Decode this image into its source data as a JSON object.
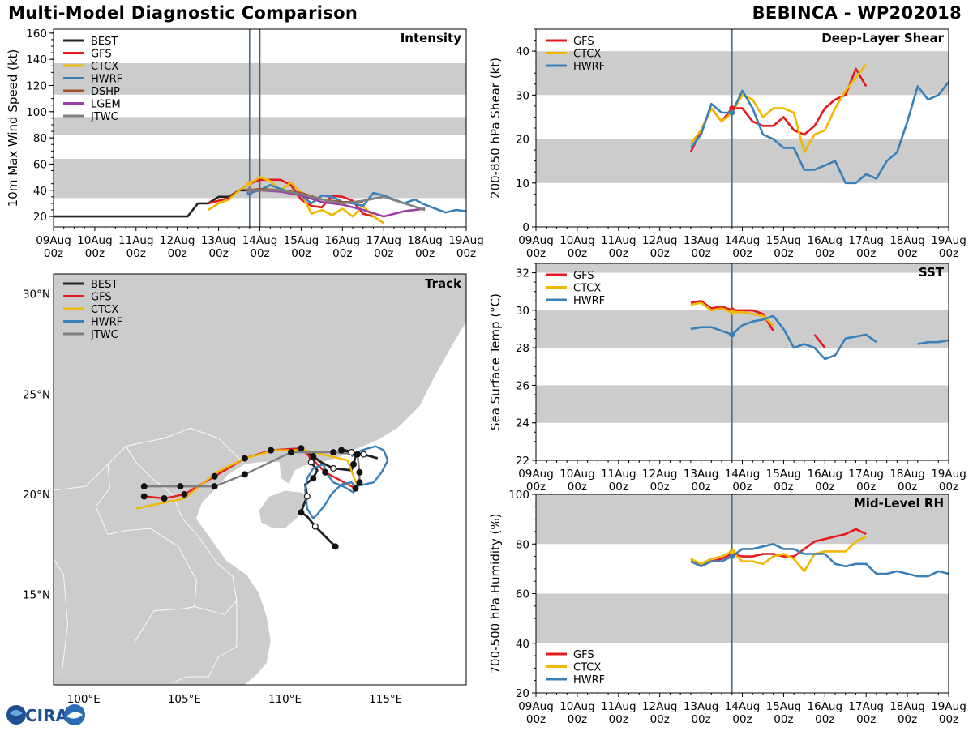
{
  "header": {
    "title": "Multi-Model Diagnostic Comparison",
    "storm": "BEBINCA - WP202018"
  },
  "logo": {
    "text": "CIRA"
  },
  "colors": {
    "BEST": "#222222",
    "GFS": "#e41a1c",
    "CTCX": "#f0b800",
    "HWRF": "#3a80b8",
    "DSHP": "#a0522d",
    "LGEM": "#9b3fa6",
    "JTWC": "#808080",
    "band": "#cccccc",
    "marker": "#4a6a8a"
  },
  "time_ticks": [
    {
      "l1": "09Aug",
      "l2": "00z"
    },
    {
      "l1": "10Aug",
      "l2": "00z"
    },
    {
      "l1": "11Aug",
      "l2": "00z"
    },
    {
      "l1": "12Aug",
      "l2": "00z"
    },
    {
      "l1": "13Aug",
      "l2": "00z"
    },
    {
      "l1": "14Aug",
      "l2": "00z"
    },
    {
      "l1": "15Aug",
      "l2": "00z"
    },
    {
      "l1": "16Aug",
      "l2": "00z"
    },
    {
      "l1": "17Aug",
      "l2": "00z"
    },
    {
      "l1": "18Aug",
      "l2": "00z"
    },
    {
      "l1": "19Aug",
      "l2": "00z"
    }
  ],
  "chart_data": [
    {
      "id": "intensity",
      "type": "line",
      "title": "Intensity",
      "ylabel": "10m Max Wind Speed (kt)",
      "xlim": [
        0,
        10
      ],
      "ylim": [
        12,
        163
      ],
      "yticks": [
        20,
        40,
        60,
        80,
        100,
        120,
        140,
        160
      ],
      "bands": [
        [
          34,
          64
        ],
        [
          82,
          96
        ],
        [
          113,
          137
        ]
      ],
      "markers": [
        {
          "x": 4.75,
          "color": "#4a6a8a"
        },
        {
          "x": 5.0,
          "color": "#7a4a3a"
        }
      ],
      "legend": [
        "BEST",
        "GFS",
        "CTCX",
        "HWRF",
        "DSHP",
        "LGEM",
        "JTWC"
      ],
      "series": [
        {
          "name": "BEST",
          "x": [
            0,
            3.25,
            3.5,
            3.75,
            4.0,
            4.25,
            4.5,
            4.75,
            5.0
          ],
          "y": [
            20,
            20,
            30,
            30,
            35,
            35,
            40,
            40,
            40
          ]
        },
        {
          "name": "GFS",
          "x": [
            3.75,
            4.25,
            4.5,
            4.75,
            5.0,
            5.25,
            5.5,
            5.75,
            6.0,
            6.25,
            6.5,
            6.75,
            7.0,
            7.25,
            7.5,
            7.75,
            8.0
          ],
          "y": [
            30,
            34,
            40,
            45,
            48,
            48,
            48,
            44,
            33,
            28,
            27,
            36,
            35,
            32,
            22,
            20,
            15
          ]
        },
        {
          "name": "CTCX",
          "x": [
            3.75,
            4.0,
            4.25,
            4.5,
            4.75,
            5.0,
            5.25,
            5.5,
            5.75,
            6.0,
            6.25,
            6.5,
            6.75,
            7.0,
            7.25,
            7.5,
            7.75,
            8.0
          ],
          "y": [
            25,
            30,
            33,
            40,
            45,
            50,
            47,
            40,
            46,
            38,
            22,
            25,
            21,
            26,
            20,
            28,
            20,
            15
          ]
        },
        {
          "name": "HWRF",
          "x": [
            4.75,
            5.0,
            5.25,
            5.5,
            5.75,
            6.0,
            6.25,
            6.5,
            6.75,
            7.0,
            7.25,
            7.5,
            7.75,
            8.0,
            8.25,
            8.5,
            8.75,
            9.0,
            9.25,
            9.5,
            9.75,
            10.0
          ],
          "y": [
            38,
            40,
            44,
            41,
            38,
            36,
            30,
            36,
            35,
            31,
            30,
            28,
            38,
            36,
            33,
            30,
            33,
            29,
            26,
            23,
            25,
            24
          ]
        },
        {
          "name": "DSHP",
          "x": [
            4.75,
            5.0,
            5.5,
            6.0,
            6.5,
            7.0,
            7.25,
            7.5
          ],
          "y": [
            40,
            41,
            40,
            38,
            33,
            31,
            31,
            31
          ]
        },
        {
          "name": "LGEM",
          "x": [
            4.75,
            5.0,
            5.5,
            6.0,
            6.5,
            7.0,
            7.5,
            8.0,
            8.5,
            9.0
          ],
          "y": [
            40,
            40,
            39,
            36,
            31,
            29,
            25,
            20,
            24,
            26
          ]
        },
        {
          "name": "JTWC",
          "x": [
            4.75,
            5.0,
            5.5,
            6.0,
            6.5,
            7.0,
            7.5,
            8.0,
            8.5,
            9.0
          ],
          "y": [
            40,
            40,
            40,
            37,
            33,
            30,
            32,
            35,
            30,
            25
          ]
        }
      ]
    },
    {
      "id": "shear",
      "type": "line",
      "title": "Deep-Layer Shear",
      "ylabel": "200-850 hPa Shear (kt)",
      "xlim": [
        0,
        10
      ],
      "ylim": [
        0,
        45
      ],
      "yticks": [
        0,
        10,
        20,
        30,
        40
      ],
      "bands": [
        [
          10,
          20
        ],
        [
          30,
          40
        ]
      ],
      "markers": [
        {
          "x": 4.75,
          "color": "#4a6a8a"
        }
      ],
      "legend": [
        "GFS",
        "CTCX",
        "HWRF"
      ],
      "series": [
        {
          "name": "GFS",
          "x": [
            3.75,
            4.0,
            4.25,
            4.5,
            4.75,
            5.0,
            5.25,
            5.5,
            5.75,
            6.0,
            6.25,
            6.5,
            6.75,
            7.0,
            7.25,
            7.5,
            7.75,
            8.0
          ],
          "y": [
            17,
            22,
            27,
            24,
            27,
            27,
            24,
            23,
            23,
            25,
            22,
            21,
            23,
            27,
            29,
            30,
            36,
            32
          ]
        },
        {
          "name": "CTCX",
          "x": [
            3.75,
            4.0,
            4.25,
            4.5,
            4.75,
            5.0,
            5.25,
            5.5,
            5.75,
            6.0,
            6.25,
            6.5,
            6.75,
            7.0,
            7.25,
            7.5,
            7.75,
            8.0
          ],
          "y": [
            19,
            22,
            27,
            24,
            26,
            30,
            29,
            25,
            27,
            27,
            26,
            17,
            21,
            22,
            27,
            31,
            34,
            37
          ]
        },
        {
          "name": "HWRF",
          "x": [
            3.75,
            4.0,
            4.25,
            4.5,
            4.75,
            5.0,
            5.25,
            5.5,
            5.75,
            6.0,
            6.25,
            6.5,
            6.75,
            7.0,
            7.25,
            7.5,
            7.75,
            8.0,
            8.25,
            8.5,
            8.75,
            9.0,
            9.25,
            9.5,
            9.75,
            10.0
          ],
          "y": [
            18,
            21,
            28,
            26,
            26,
            31,
            27,
            21,
            20,
            18,
            18,
            13,
            13,
            14,
            15,
            10,
            10,
            12,
            11,
            15,
            17,
            24,
            32,
            29,
            30,
            33
          ]
        }
      ]
    },
    {
      "id": "sst",
      "type": "line",
      "title": "SST",
      "ylabel": "Sea Surface Temp (°C)",
      "xlim": [
        0,
        10
      ],
      "ylim": [
        22,
        32.5
      ],
      "yticks": [
        22,
        24,
        26,
        28,
        30,
        32
      ],
      "bands": [
        [
          24,
          26
        ],
        [
          28,
          30
        ],
        [
          32,
          32.5
        ]
      ],
      "markers": [
        {
          "x": 4.75,
          "color": "#4a6a8a"
        }
      ],
      "legend": [
        "GFS",
        "CTCX",
        "HWRF"
      ],
      "series": [
        {
          "name": "GFS",
          "x": [
            3.75,
            4.0,
            4.25,
            4.5,
            4.75,
            5.0,
            5.25,
            5.5,
            5.75
          ],
          "y": [
            30.4,
            30.5,
            30.1,
            30.2,
            30.0,
            30.0,
            30.0,
            29.8,
            28.9
          ]
        },
        {
          "name": "GFS",
          "x": [
            6.75,
            7.0
          ],
          "y": [
            28.7,
            28.0
          ]
        },
        {
          "name": "CTCX",
          "x": [
            3.75,
            4.0,
            4.25,
            4.5,
            4.75,
            5.0,
            5.25,
            5.5,
            5.75
          ],
          "y": [
            30.3,
            30.4,
            30.0,
            30.1,
            29.9,
            29.9,
            29.8,
            29.7,
            29.2
          ]
        },
        {
          "name": "HWRF",
          "x": [
            3.75,
            4.0,
            4.25,
            4.5,
            4.75,
            5.0,
            5.25,
            5.5,
            5.75,
            6.0,
            6.25,
            6.5,
            6.75,
            7.0,
            7.25,
            7.5,
            7.75,
            8.0,
            8.25
          ],
          "y": [
            29.0,
            29.1,
            29.1,
            28.9,
            28.7,
            29.2,
            29.4,
            29.5,
            29.7,
            29.0,
            28.0,
            28.2,
            28.0,
            27.4,
            27.6,
            28.5,
            28.6,
            28.7,
            28.3
          ]
        },
        {
          "name": "HWRF",
          "x": [
            9.25,
            9.5,
            9.75,
            10.0
          ],
          "y": [
            28.2,
            28.3,
            28.3,
            28.4
          ]
        }
      ]
    },
    {
      "id": "rh",
      "type": "line",
      "title": "Mid-Level RH",
      "ylabel": "700-500 hPa Humidity (%)",
      "xlim": [
        0,
        10
      ],
      "ylim": [
        20,
        100
      ],
      "yticks": [
        20,
        40,
        60,
        80,
        100
      ],
      "bands": [
        [
          40,
          60
        ],
        [
          80,
          100
        ]
      ],
      "markers": [
        {
          "x": 4.75,
          "color": "#4a6a8a"
        }
      ],
      "legend": [
        "GFS",
        "CTCX",
        "HWRF"
      ],
      "series": [
        {
          "name": "GFS",
          "x": [
            3.75,
            4.0,
            4.25,
            4.5,
            4.75,
            5.0,
            5.25,
            5.5,
            5.75,
            6.0,
            6.25,
            6.5,
            6.75,
            7.0,
            7.25,
            7.5,
            7.75,
            8.0
          ],
          "y": [
            73,
            72,
            73,
            74,
            76,
            75,
            75,
            76,
            76,
            75,
            75,
            78,
            81,
            82,
            83,
            84,
            86,
            84
          ]
        },
        {
          "name": "CTCX",
          "x": [
            3.75,
            4.0,
            4.25,
            4.5,
            4.75,
            5.0,
            5.25,
            5.5,
            5.75,
            6.0,
            6.25,
            6.5,
            6.75,
            7.0,
            7.25,
            7.5,
            7.75,
            8.0
          ],
          "y": [
            74,
            72,
            74,
            75,
            77,
            73,
            73,
            72,
            75,
            76,
            74,
            69,
            76,
            77,
            77,
            77,
            81,
            83
          ]
        },
        {
          "name": "HWRF",
          "x": [
            3.75,
            4.0,
            4.25,
            4.5,
            4.75,
            5.0,
            5.25,
            5.5,
            5.75,
            6.0,
            6.25,
            6.5,
            6.75,
            7.0,
            7.25,
            7.5,
            7.75,
            8.0,
            8.25,
            8.5,
            8.75,
            9.0,
            9.25,
            9.5,
            9.75,
            10.0
          ],
          "y": [
            73,
            71,
            73,
            73,
            75,
            78,
            78,
            79,
            80,
            78,
            78,
            76,
            76,
            76,
            72,
            71,
            72,
            72,
            68,
            68,
            69,
            68,
            67,
            67,
            69,
            68
          ]
        }
      ]
    },
    {
      "id": "track",
      "type": "map",
      "title": "Track",
      "lon_range": [
        98.5,
        119
      ],
      "lat_range": [
        10.5,
        31
      ],
      "lon_ticks": [
        100,
        105,
        110,
        115
      ],
      "lat_ticks": [
        15,
        20,
        25,
        30
      ],
      "lon_labels": [
        "100°E",
        "105°E",
        "110°E",
        "115°E"
      ],
      "lat_labels": [
        "15°N",
        "20°N",
        "25°N",
        "30°N"
      ],
      "legend": [
        "BEST",
        "GFS",
        "CTCX",
        "HWRF",
        "JTWC"
      ],
      "series": [
        {
          "name": "BEST",
          "lon": [
            112.5,
            112.0,
            111.5,
            111.1,
            110.8,
            110.9,
            111.1,
            111.0,
            111.4,
            111.6,
            111.3,
            111.2,
            111.4,
            111.8,
            112.4,
            113.3,
            113.4,
            113.5,
            113.3,
            113.0,
            112.8,
            113.3,
            113.9,
            114.6
          ],
          "lat": [
            17.4,
            17.9,
            18.4,
            18.9,
            19.1,
            19.4,
            19.9,
            20.5,
            20.8,
            21.2,
            21.6,
            22.0,
            21.9,
            21.6,
            21.3,
            21.2,
            21.5,
            21.9,
            22.1,
            22.2,
            22.2,
            22.1,
            22.0,
            21.8
          ]
        },
        {
          "name": "GFS",
          "lon": [
            113.5,
            112.0,
            110.8,
            109.3,
            108.0,
            106.5,
            105.0,
            104.0,
            103.0
          ],
          "lat": [
            20.3,
            21.1,
            22.3,
            22.2,
            21.8,
            20.9,
            20.0,
            19.8,
            19.9
          ]
        },
        {
          "name": "CTCX",
          "lon": [
            113.6,
            113.1,
            111.0,
            109.5,
            108.0,
            106.6,
            105.0,
            102.6
          ],
          "lat": [
            20.4,
            21.7,
            22.2,
            22.2,
            21.8,
            21.1,
            19.8,
            19.3
          ]
        },
        {
          "name": "HWRF",
          "lon": [
            113.6,
            113.4,
            112.9,
            112.4,
            112.1,
            111.9,
            111.4,
            111.1,
            111.0,
            111.1,
            111.4,
            111.6,
            112.0,
            112.3,
            112.8,
            113.3,
            113.5,
            114.4,
            114.8,
            115.1,
            114.9,
            114.5,
            113.8,
            113.3
          ],
          "lat": [
            20.5,
            20.1,
            20.4,
            20.6,
            21.0,
            21.5,
            21.3,
            20.8,
            20.2,
            19.3,
            18.8,
            19.0,
            19.5,
            20.0,
            20.5,
            20.6,
            20.4,
            20.6,
            21.1,
            21.7,
            22.2,
            22.4,
            22.2,
            21.9
          ]
        },
        {
          "name": "JTWC",
          "lon": [
            113.7,
            113.7,
            113.6,
            112.4,
            110.3,
            108.0,
            106.5,
            104.8,
            103.0
          ],
          "lat": [
            20.6,
            21.1,
            22.0,
            22.1,
            22.1,
            21.0,
            20.4,
            20.4,
            20.4
          ]
        }
      ]
    }
  ]
}
